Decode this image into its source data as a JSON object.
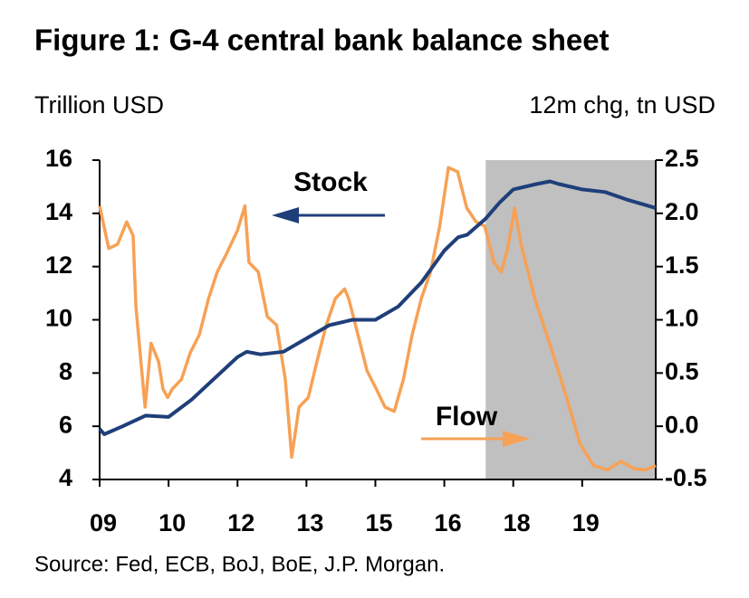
{
  "chart_data": {
    "type": "line",
    "title": "Figure 1: G-4 central bank balance sheet",
    "y_label": "Trillion USD",
    "y2_label": "12m chg, tn USD",
    "source": "Source: Fed, ECB, BoJ, BoE, J.P. Morgan.",
    "xlim": [
      2009,
      2021.1
    ],
    "xticks": [
      {
        "value": 2009,
        "label": "09"
      },
      {
        "value": 2010.5,
        "label": "10"
      },
      {
        "value": 2012,
        "label": "12"
      },
      {
        "value": 2013.5,
        "label": "13"
      },
      {
        "value": 2015,
        "label": "15"
      },
      {
        "value": 2016.5,
        "label": "16"
      },
      {
        "value": 2018,
        "label": "18"
      },
      {
        "value": 2019.5,
        "label": "19"
      }
    ],
    "ylim": [
      4,
      16
    ],
    "yticks": [
      4,
      6,
      8,
      10,
      12,
      14,
      16
    ],
    "y2lim": [
      -0.5,
      2.5
    ],
    "y2ticks": [
      -0.5,
      {
        "value": 0,
        "label": "0.0"
      },
      0.5,
      {
        "value": 1,
        "label": "1.0"
      },
      1.5,
      {
        "value": 2,
        "label": "2.0"
      },
      2.5
    ],
    "shaded_region": {
      "from": 2017.4,
      "to": 2021.1,
      "color": "#c0c0c0"
    },
    "series": [
      {
        "name": "Stock",
        "color": "#1f3f7a",
        "axis": "y",
        "x": [
          2009,
          2009.1,
          2009.5,
          2010,
          2010.5,
          2011,
          2011.5,
          2012,
          2012.2,
          2012.5,
          2013,
          2013.5,
          2014,
          2014.5,
          2015,
          2015.5,
          2016,
          2016.5,
          2016.8,
          2017,
          2017.4,
          2017.7,
          2018,
          2018.5,
          2018.8,
          2019,
          2019.5,
          2020,
          2020.5,
          2021.1
        ],
        "values": [
          5.9,
          5.7,
          6.0,
          6.4,
          6.35,
          7.0,
          7.8,
          8.6,
          8.8,
          8.7,
          8.8,
          9.3,
          9.8,
          10.0,
          10.0,
          10.5,
          11.4,
          12.6,
          13.1,
          13.2,
          13.8,
          14.4,
          14.9,
          15.1,
          15.2,
          15.1,
          14.9,
          14.8,
          14.5,
          14.2
        ]
      },
      {
        "name": "Flow",
        "color": "#f7a155",
        "axis": "y2",
        "x": [
          2009.0,
          2009.2,
          2009.39,
          2009.59,
          2009.73,
          2009.79,
          2009.99,
          2010.12,
          2010.28,
          2010.38,
          2010.48,
          2010.58,
          2010.78,
          2010.97,
          2011.17,
          2011.37,
          2011.56,
          2011.76,
          2012.0,
          2012.16,
          2012.25,
          2012.45,
          2012.65,
          2012.85,
          2013.04,
          2013.18,
          2013.34,
          2013.54,
          2013.73,
          2013.93,
          2014.13,
          2014.33,
          2014.42,
          2014.62,
          2014.82,
          2015.02,
          2015.21,
          2015.41,
          2015.61,
          2015.8,
          2016.0,
          2016.2,
          2016.4,
          2016.59,
          2016.79,
          2016.99,
          2017.19,
          2017.38,
          2017.58,
          2017.74,
          2017.88,
          2018.03,
          2018.17,
          2018.47,
          2018.86,
          2019.16,
          2019.45,
          2019.75,
          2020.05,
          2020.34,
          2020.64,
          2020.87,
          2021.1
        ],
        "values": [
          2.07,
          1.67,
          1.71,
          1.92,
          1.79,
          1.12,
          0.18,
          0.78,
          0.61,
          0.35,
          0.27,
          0.35,
          0.44,
          0.69,
          0.86,
          1.2,
          1.45,
          1.62,
          1.84,
          2.07,
          1.54,
          1.45,
          1.03,
          0.95,
          0.44,
          -0.29,
          0.18,
          0.27,
          0.61,
          0.95,
          1.2,
          1.29,
          1.2,
          0.86,
          0.52,
          0.35,
          0.18,
          0.14,
          0.44,
          0.86,
          1.2,
          1.45,
          1.88,
          2.43,
          2.39,
          2.05,
          1.92,
          1.88,
          1.54,
          1.45,
          1.67,
          2.05,
          1.71,
          1.2,
          0.69,
          0.27,
          -0.16,
          -0.37,
          -0.41,
          -0.33,
          -0.4,
          -0.41,
          -0.37
        ]
      }
    ]
  }
}
